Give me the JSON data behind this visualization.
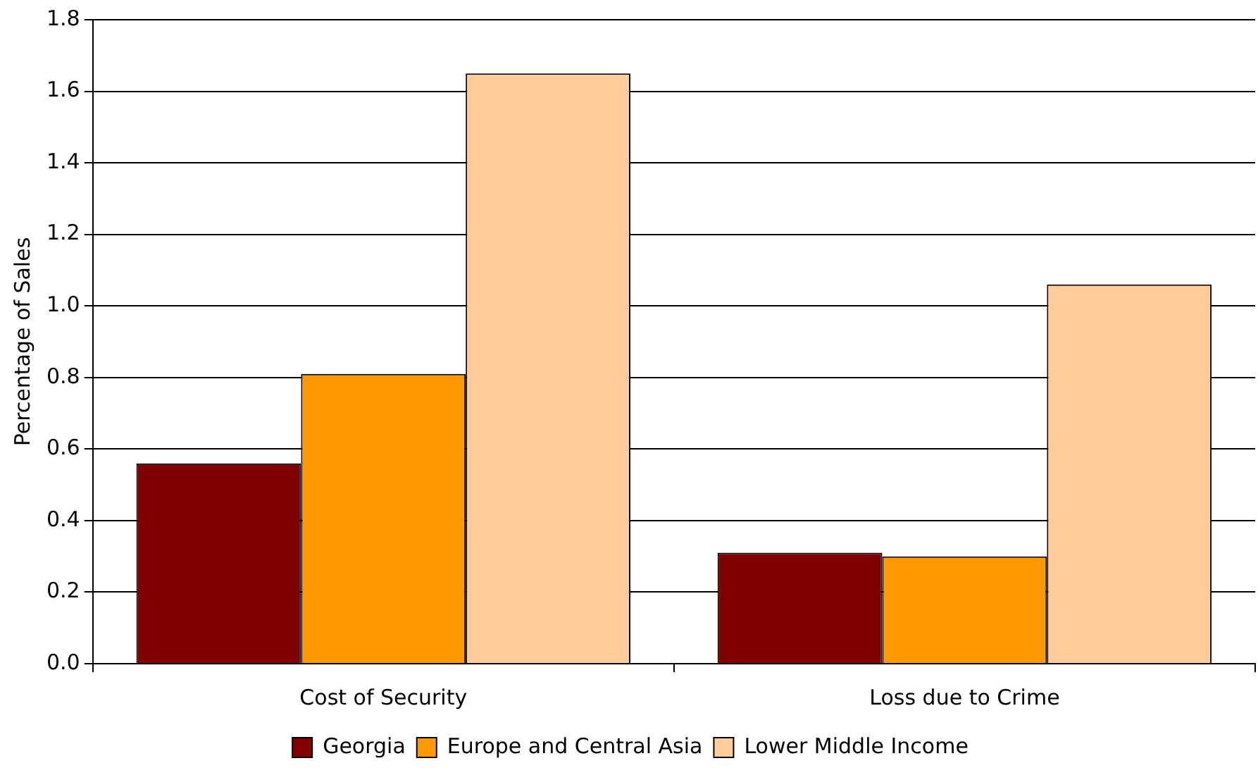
{
  "chart_data": {
    "type": "bar",
    "ylabel": "Percentage of Sales",
    "categories": [
      "Cost of Security",
      "Loss due to Crime"
    ],
    "series": [
      {
        "name": "Georgia",
        "color": "#800000",
        "values": [
          0.56,
          0.31
        ]
      },
      {
        "name": "Europe and Central Asia",
        "color": "#ff9900",
        "values": [
          0.81,
          0.3
        ]
      },
      {
        "name": "Lower Middle Income",
        "color": "#ffcc99",
        "values": [
          1.65,
          1.06
        ]
      }
    ],
    "ylim": [
      0,
      1.8
    ],
    "yticks": [
      {
        "value": 0,
        "label": "0.0"
      },
      {
        "value": 0.2,
        "label": "0.2"
      },
      {
        "value": 0.4,
        "label": "0.4"
      },
      {
        "value": 0.6,
        "label": "0.6"
      },
      {
        "value": 0.8,
        "label": "0.8"
      },
      {
        "value": 1,
        "label": "1.0"
      },
      {
        "value": 1.2,
        "label": "1.2"
      },
      {
        "value": 1.4,
        "label": "1.4"
      },
      {
        "value": 1.6,
        "label": "1.6"
      },
      {
        "value": 1.8,
        "label": "1.8"
      }
    ],
    "grid": "y",
    "legend": "bottom"
  }
}
